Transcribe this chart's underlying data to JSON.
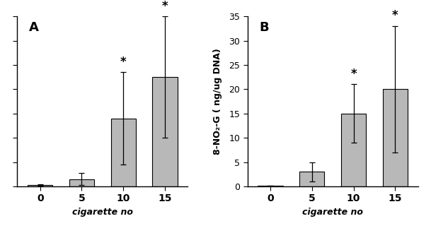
{
  "panel_A": {
    "label": "A",
    "categories": [
      "0",
      "5",
      "10",
      "15"
    ],
    "values": [
      0.3,
      1.5,
      14.0,
      22.5
    ],
    "errors": [
      0.1,
      1.2,
      9.5,
      12.5
    ],
    "xlabel": "cigarette no",
    "ylim": [
      0,
      35
    ],
    "yticks": [
      0,
      5,
      10,
      15,
      20,
      25,
      30,
      35
    ],
    "significance": [
      false,
      false,
      true,
      true
    ],
    "bar_color": "#b8b8b8",
    "bar_edge": "#000000"
  },
  "panel_B": {
    "label": "B",
    "categories": [
      "0",
      "5",
      "10",
      "15"
    ],
    "values": [
      0.15,
      3.0,
      15.0,
      20.0
    ],
    "errors": [
      0.05,
      2.0,
      6.0,
      13.0
    ],
    "xlabel": "cigarette no",
    "ylim": [
      0,
      35
    ],
    "yticks": [
      0,
      5,
      10,
      15,
      20,
      25,
      30,
      35
    ],
    "significance": [
      false,
      false,
      true,
      true
    ],
    "bar_color": "#b8b8b8",
    "bar_edge": "#000000"
  },
  "shared_ylabel": "8-NO₂-G ( ng/ug DNA)",
  "fig_background": "#ffffff",
  "panel_bg": "#ffffff"
}
